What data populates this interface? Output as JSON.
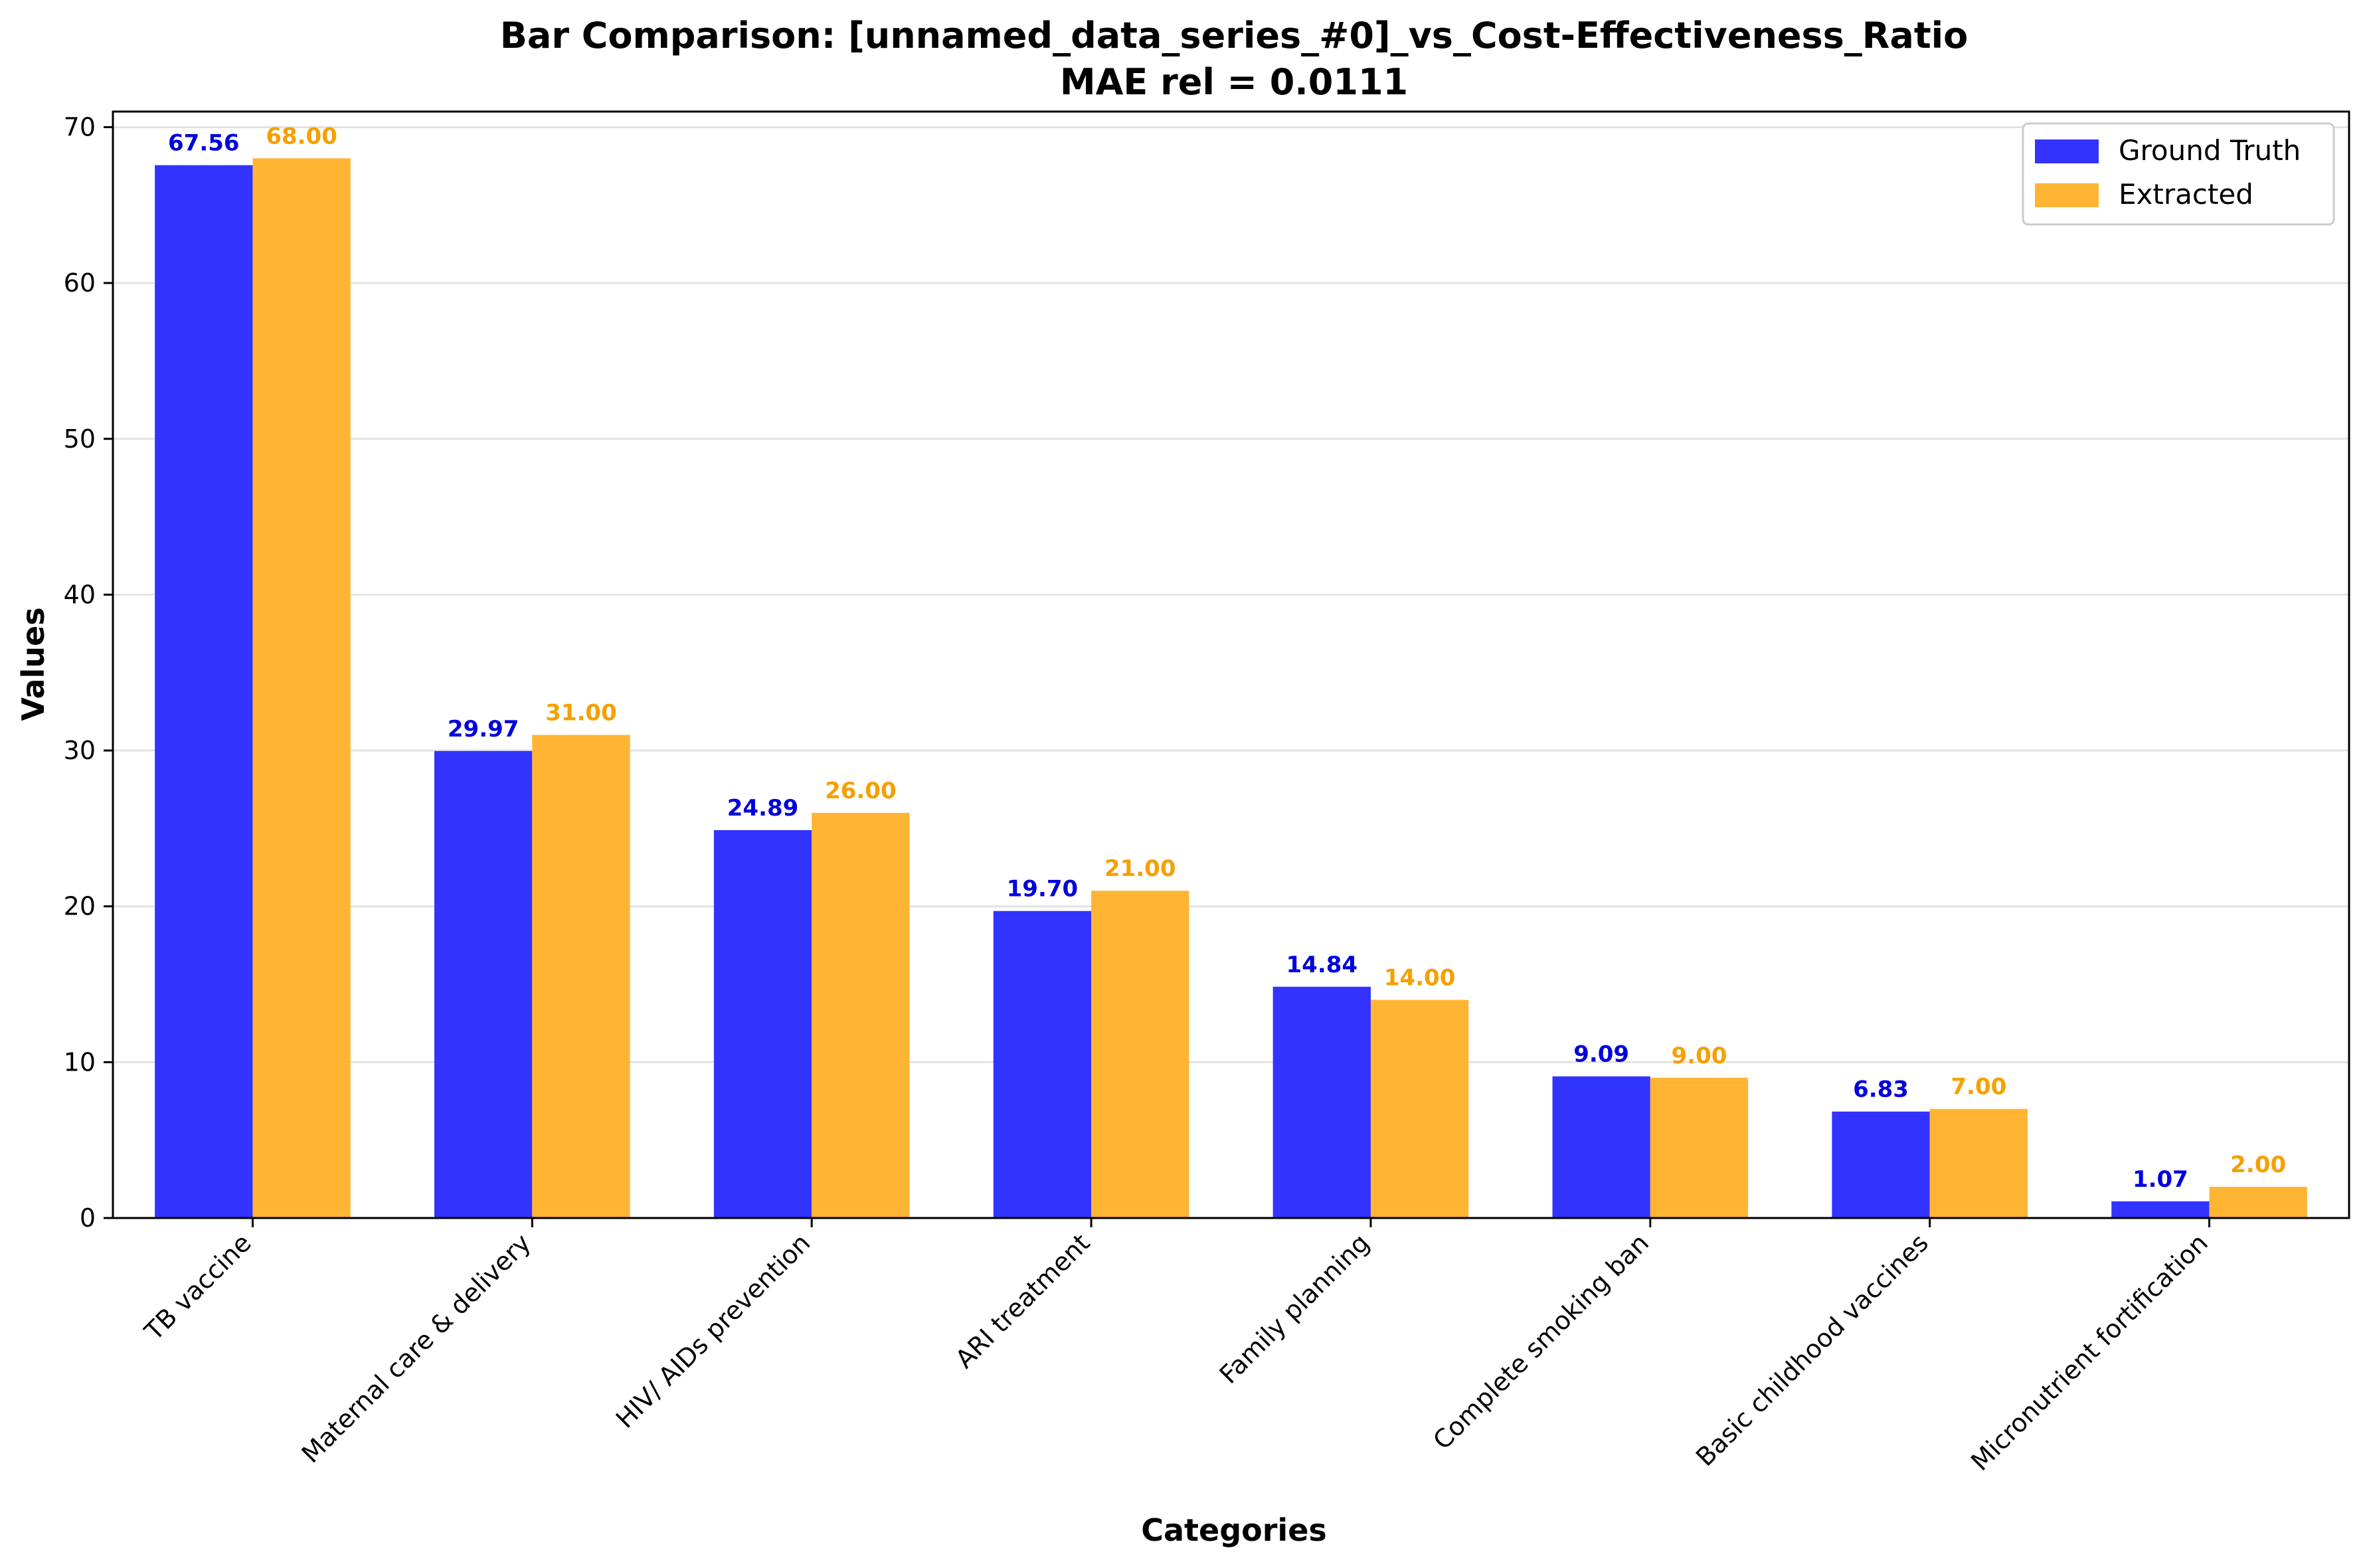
{
  "chart_data": {
    "type": "bar",
    "title": "Bar Comparison: [unnamed_data_series_#0]_vs_Cost-Effectiveness_Ratio",
    "subtitle": "MAE rel = 0.0111",
    "xlabel": "Categories",
    "ylabel": "Values",
    "ylim": [
      0,
      71
    ],
    "yticks": [
      0,
      10,
      20,
      30,
      40,
      50,
      60,
      70
    ],
    "grid": "horizontal",
    "legend_position": "top-right",
    "categories": [
      "TB vaccine",
      "Maternal care & delivery",
      "HIV/ AIDs prevention",
      "ARI treatment",
      "Family planning",
      "Complete smoking ban",
      "Basic childhood vaccines",
      "Micronutrient fortification"
    ],
    "series": [
      {
        "name": "Ground Truth",
        "color": "#3333ff",
        "label_color": "#0000dd",
        "values": [
          67.56,
          29.97,
          24.89,
          19.7,
          14.84,
          9.09,
          6.83,
          1.07
        ],
        "labels": [
          "67.56",
          "29.97",
          "24.89",
          "19.70",
          "14.84",
          "9.09",
          "6.83",
          "1.07"
        ]
      },
      {
        "name": "Extracted",
        "color": "#ffb533",
        "label_color": "#f5a000",
        "values": [
          68.0,
          31.0,
          26.0,
          21.0,
          14.0,
          9.0,
          7.0,
          2.0
        ],
        "labels": [
          "68.00",
          "31.00",
          "26.00",
          "21.00",
          "14.00",
          "9.00",
          "7.00",
          "2.00"
        ]
      }
    ]
  }
}
